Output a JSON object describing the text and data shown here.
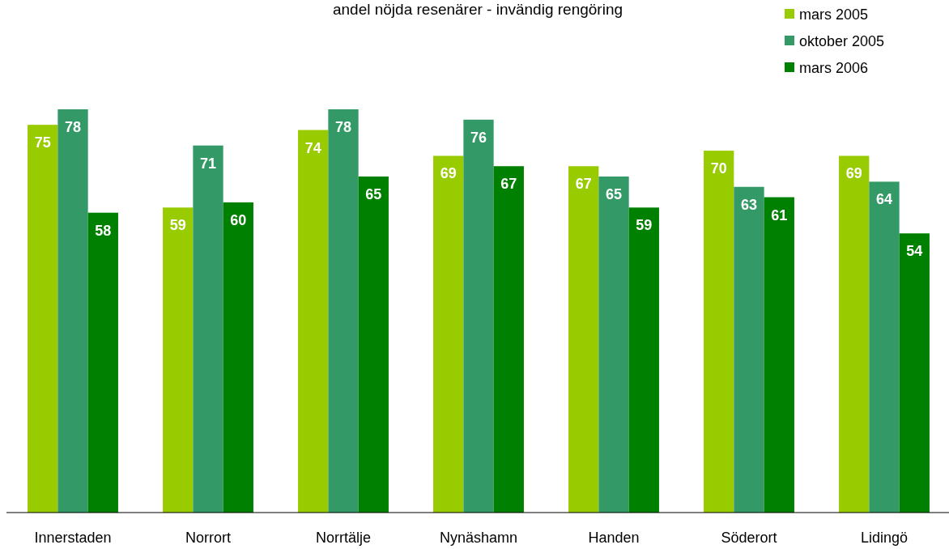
{
  "chart_data": {
    "type": "bar",
    "title": "andel nöjda resenärer - invändig rengöring",
    "categories": [
      "Innerstaden",
      "Norrort",
      "Norrtälje",
      "Nynäshamn",
      "Handen",
      "Söderort",
      "Lidingö"
    ],
    "series": [
      {
        "name": "mars 2005",
        "color": "#99cc00",
        "values": [
          75,
          59,
          74,
          69,
          67,
          70,
          69
        ]
      },
      {
        "name": "oktober 2005",
        "color": "#339966",
        "values": [
          78,
          71,
          78,
          76,
          65,
          63,
          64
        ]
      },
      {
        "name": "mars 2006",
        "color": "#008000",
        "values": [
          58,
          60,
          65,
          67,
          59,
          61,
          54
        ]
      }
    ],
    "data_labels": true,
    "legend": "top right"
  }
}
